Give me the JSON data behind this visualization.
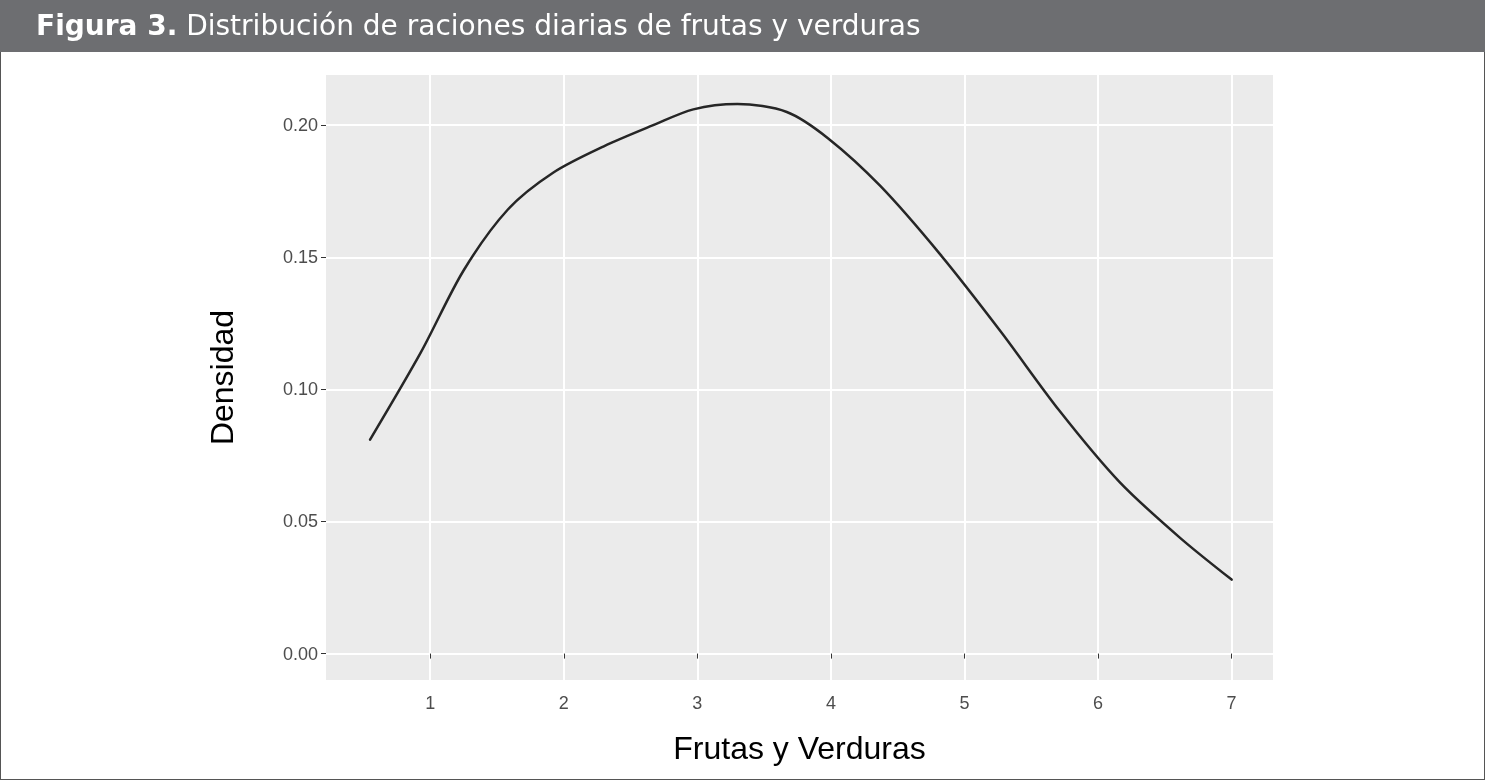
{
  "chart_data": {
    "type": "line",
    "title": "Figura 3. Distribución de raciones diarias de frutas y verduras",
    "xlabel": "Frutas y Verduras",
    "ylabel": "Densidad",
    "x": [
      0.55,
      0.93,
      1.25,
      1.58,
      1.92,
      2.3,
      2.67,
      2.97,
      3.3,
      3.67,
      3.98,
      4.37,
      4.82,
      5.27,
      5.71,
      6.16,
      6.61,
      7.0
    ],
    "series": [
      {
        "color": "#262626",
        "values": [
          0.081,
          0.114,
          0.145,
          0.168,
          0.182,
          0.192,
          0.2,
          0.206,
          0.208,
          0.205,
          0.195,
          0.177,
          0.151,
          0.122,
          0.092,
          0.065,
          0.044,
          0.028
        ]
      }
    ],
    "xlim": [
      0.22,
      7.31
    ],
    "xticks": [
      1,
      2,
      3,
      4,
      5,
      6,
      7
    ],
    "ylim": [
      -0.01,
      0.219
    ],
    "yticks": [
      {
        "value": 0,
        "label": "0.00"
      },
      {
        "value": 0.05,
        "label": "0.05"
      },
      {
        "value": 0.1,
        "label": "0.10"
      },
      {
        "value": 0.15,
        "label": "0.15"
      },
      {
        "value": 0.2,
        "label": "0.20"
      }
    ],
    "grid": true,
    "marker": "none",
    "line_style": "solid"
  }
}
